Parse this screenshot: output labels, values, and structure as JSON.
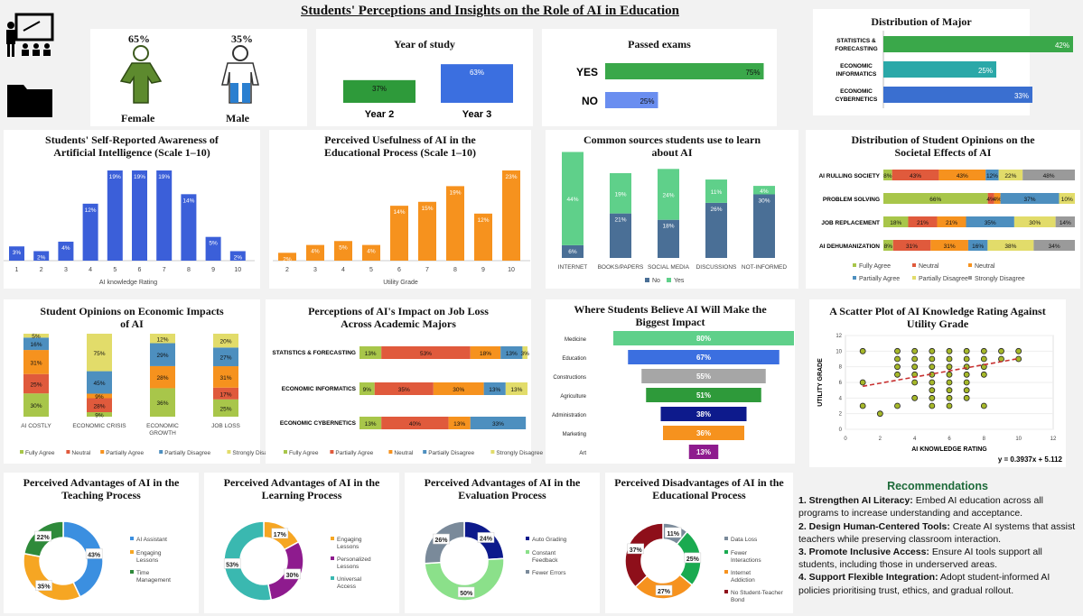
{
  "title": "Students' Perceptions and Insights on the Role of AI in Education",
  "colors": {
    "blue": "#3b5fd9",
    "orange": "#f6921e",
    "green": "#2e9a3a",
    "lightgreen": "#a8c64a",
    "red": "#e05a3c",
    "slate": "#4a6f96",
    "mint": "#5fd08a",
    "yellow": "#e2dc6a",
    "gray": "#9a9a9a",
    "steel": "#4d8fbf"
  },
  "gender": {
    "female_label": "Female",
    "female_pct": "65%",
    "male_label": "Male",
    "male_pct": "35%"
  },
  "year": {
    "title": "Year of study",
    "categories": [
      "Year 2",
      "Year 3"
    ],
    "values": [
      37,
      63
    ],
    "labels": [
      "37%",
      "63%"
    ]
  },
  "exams": {
    "title": "Passed exams",
    "categories": [
      "YES",
      "NO"
    ],
    "values": [
      75,
      25
    ],
    "labels": [
      "75%",
      "25%"
    ]
  },
  "major": {
    "title": "Distribution of Major",
    "categories": [
      "STATISTICS &\nFORECASTING",
      "ECONOMIC\nINFORMATICS",
      "ECONOMIC\nCYBERNETICS"
    ],
    "values": [
      42,
      25,
      33
    ],
    "labels": [
      "42%",
      "25%",
      "33%"
    ]
  },
  "awareness": {
    "title": "Students' Self-Reported Awareness of Artificial Intelligence (Scale 1–10)",
    "x": [
      "1",
      "2",
      "3",
      "4",
      "5",
      "6",
      "7",
      "8",
      "9",
      "10"
    ],
    "values": [
      3,
      2,
      4,
      12,
      19,
      19,
      19,
      14,
      5,
      2
    ],
    "xlabel": "AI knowledge Rating"
  },
  "usefulness": {
    "title": "Perceived Usefulness of AI in the Educational Process (Scale 1–10)",
    "x": [
      "2",
      "3",
      "4",
      "5",
      "6",
      "7",
      "8",
      "9",
      "10"
    ],
    "values": [
      2,
      4,
      5,
      4,
      14,
      15,
      19,
      12,
      23
    ],
    "xlabel": "Utility Grade"
  },
  "sources": {
    "title": "Common sources students use to learn about AI",
    "categories": [
      "INTERNET",
      "BOOKS/PAPERS",
      "SOCIAL MEDIA",
      "DISCUSSIONS",
      "NOT-INFORMED"
    ],
    "no": [
      6,
      21,
      18,
      26,
      30
    ],
    "yes": [
      44,
      19,
      24,
      11,
      4
    ],
    "legend": [
      "No",
      "Yes"
    ]
  },
  "societal": {
    "title": "Distribution of Student Opinions on the Societal Effects of AI",
    "categories": [
      "AI RULLING SOCIETY",
      "PROBLEM SOLVING",
      "JOB REPLACEMENT",
      "AI DEHUMANIZATION"
    ],
    "series": [
      {
        "name": "Fully Agree",
        "values": [
          8,
          66,
          18,
          8
        ],
        "labels": [
          "8%",
          "66%",
          "18%",
          "8%"
        ]
      },
      {
        "name": "Neutral",
        "values": [
          43,
          4,
          21,
          31
        ],
        "labels": [
          "43%",
          "4%",
          "21%",
          "31%"
        ]
      },
      {
        "name": "Neutral",
        "values": [
          43,
          4,
          21,
          31
        ],
        "labels": [
          "43%",
          "4%",
          "21%",
          "31%"
        ]
      },
      {
        "name": "Partially Agree",
        "values": [
          12,
          37,
          35,
          16
        ],
        "labels": [
          "12%",
          "37%",
          "35%",
          "16%"
        ]
      },
      {
        "name": "Partially Disagree",
        "values": [
          22,
          10,
          30,
          38
        ],
        "labels": [
          "22%",
          "10%",
          "30%",
          "38%"
        ]
      },
      {
        "name": "Strongly Disagree",
        "values": [
          48,
          0,
          14,
          34
        ],
        "labels": [
          "48%",
          "",
          "14%",
          "34%"
        ]
      }
    ]
  },
  "economic": {
    "title": "Student Opinions on Economic Impacts of AI",
    "categories": [
      "AI COSTLY",
      "ECONOMIC CRISIS",
      "ECONOMIC\nGROWTH",
      "JOB LOSS"
    ],
    "series": [
      {
        "name": "Fully Agree",
        "values": [
          30,
          9,
          36,
          25
        ],
        "labels": [
          "30%",
          "9%",
          "36%",
          "25%"
        ]
      },
      {
        "name": "Neutral",
        "values": [
          25,
          28,
          0,
          17
        ],
        "labels": [
          "25%",
          "28%",
          "",
          "17%"
        ]
      },
      {
        "name": "Partially Agree",
        "values": [
          31,
          9,
          28,
          31
        ],
        "labels": [
          "31%",
          "9%",
          "28%",
          "31%"
        ]
      },
      {
        "name": "Partially Disagree",
        "values": [
          16,
          45,
          29,
          27
        ],
        "labels": [
          "16%",
          "45%",
          "29%",
          "27%"
        ]
      },
      {
        "name": "Strongly Disagree",
        "values": [
          5,
          75,
          12,
          20
        ],
        "labels": [
          "5%",
          "75%",
          "12%",
          "20%"
        ]
      }
    ]
  },
  "jobloss": {
    "title": "Perceptions of AI's Impact on Job Loss Across Academic Majors",
    "categories": [
      "STATISTICS & FORECASTING",
      "ECONOMIC INFORMATICS",
      "ECONOMIC CYBERNETICS"
    ],
    "series": [
      {
        "name": "Fully Agree",
        "values": [
          13,
          9,
          13
        ],
        "labels": [
          "13%",
          "9%",
          "13%"
        ]
      },
      {
        "name": "Partially Agree",
        "values": [
          53,
          35,
          40
        ],
        "labels": [
          "53%",
          "35%",
          "40%"
        ]
      },
      {
        "name": "Neutral",
        "values": [
          18,
          30,
          13
        ],
        "labels": [
          "18%",
          "30%",
          "13%"
        ]
      },
      {
        "name": "Partially Disagree",
        "values": [
          13,
          13,
          33
        ],
        "labels": [
          "13%",
          "13%",
          "33%"
        ]
      },
      {
        "name": "Strongly Disagree",
        "values": [
          3,
          13,
          0
        ],
        "labels": [
          "3%",
          "13%",
          ""
        ]
      }
    ]
  },
  "impact": {
    "title": "Where Students Believe AI Will Make the Biggest Impact",
    "categories": [
      "Medicine",
      "Education",
      "Constructions",
      "Agriculture",
      "Administration",
      "Marketing",
      "Art"
    ],
    "values": [
      80,
      67,
      55,
      51,
      38,
      36,
      13
    ],
    "labels": [
      "80%",
      "67%",
      "55%",
      "51%",
      "38%",
      "36%",
      "13%"
    ],
    "colors": [
      "#5fd08a",
      "#3b6fe0",
      "#a6a6a6",
      "#2e9a3a",
      "#0d1a8c",
      "#f6921e",
      "#8e1b8e"
    ]
  },
  "scatter": {
    "title": "A Scatter Plot of AI Knowledge Rating Against Utility Grade",
    "xlabel": "AI KNOWLEDGE RATING",
    "ylabel": "UTILITY GRADE",
    "xticks": [
      "0",
      "2",
      "4",
      "6",
      "8",
      "10",
      "12"
    ],
    "yticks": [
      "0",
      "2",
      "4",
      "6",
      "8",
      "10",
      "12"
    ],
    "equation": "y = 0.3937x + 5.112",
    "points": [
      [
        1,
        10
      ],
      [
        1,
        6
      ],
      [
        1,
        3
      ],
      [
        2,
        2
      ],
      [
        3,
        10
      ],
      [
        3,
        9
      ],
      [
        3,
        8
      ],
      [
        3,
        7
      ],
      [
        3,
        3
      ],
      [
        4,
        10
      ],
      [
        4,
        9
      ],
      [
        4,
        8
      ],
      [
        4,
        7
      ],
      [
        4,
        6
      ],
      [
        4,
        4
      ],
      [
        5,
        10
      ],
      [
        5,
        9
      ],
      [
        5,
        8
      ],
      [
        5,
        7
      ],
      [
        5,
        6
      ],
      [
        5,
        5
      ],
      [
        5,
        4
      ],
      [
        5,
        3
      ],
      [
        6,
        10
      ],
      [
        6,
        9
      ],
      [
        6,
        8
      ],
      [
        6,
        7
      ],
      [
        6,
        6
      ],
      [
        6,
        5
      ],
      [
        6,
        4
      ],
      [
        6,
        3
      ],
      [
        7,
        10
      ],
      [
        7,
        9
      ],
      [
        7,
        8
      ],
      [
        7,
        7
      ],
      [
        7,
        6
      ],
      [
        7,
        5
      ],
      [
        7,
        4
      ],
      [
        8,
        10
      ],
      [
        8,
        9
      ],
      [
        8,
        8
      ],
      [
        8,
        7
      ],
      [
        8,
        3
      ],
      [
        9,
        10
      ],
      [
        9,
        9
      ],
      [
        10,
        10
      ],
      [
        10,
        9
      ]
    ]
  },
  "teaching": {
    "title": "Perceived Advantages of AI in the Teaching Process",
    "values": [
      43,
      35,
      22
    ],
    "labels": [
      "43%",
      "35%",
      "22%"
    ],
    "legend": [
      "AI Assistant",
      "Engaging Lessons",
      "Time Management"
    ],
    "colors": [
      "#3b8fe0",
      "#f6a623",
      "#2e8a3a"
    ]
  },
  "learning": {
    "title": "Perceived Advantages of AI in the Learning Process",
    "values": [
      17,
      30,
      53
    ],
    "labels": [
      "17%",
      "30%",
      "53%"
    ],
    "legend": [
      "Engaging Lessons",
      "Personalized Lessons",
      "Universal Access"
    ],
    "colors": [
      "#f6a623",
      "#8e1b8e",
      "#3ab8b0"
    ]
  },
  "evaluation": {
    "title": "Perceived Advantages of AI in the Evaluation Process",
    "values": [
      24,
      50,
      26
    ],
    "labels": [
      "24%",
      "50%",
      "26%"
    ],
    "legend": [
      "Auto Grading",
      "Constant Feedback",
      "Fewer Errors"
    ],
    "colors": [
      "#0d1a8c",
      "#8be08a",
      "#7a8a9a"
    ]
  },
  "disadv": {
    "title": "Perceived Disadvantages of AI in the Educational Process",
    "values": [
      11,
      25,
      27,
      37
    ],
    "labels": [
      "11%",
      "25%",
      "27%",
      "37%"
    ],
    "legend": [
      "Data Loss",
      "Fewer Interactions",
      "Internet Addiction",
      "No Student-Teacher Bond"
    ],
    "colors": [
      "#7a8a9a",
      "#1aaa50",
      "#f6921e",
      "#8e0f1a"
    ]
  },
  "recommendations": {
    "title": "Recommendations",
    "items": [
      {
        "head": "1. Strengthen AI Literacy:",
        "text": " Embed AI education across all programs to increase understanding and acceptance."
      },
      {
        "head": "2. Design Human-Centered Tools:",
        "text": " Create AI systems that assist teachers while preserving classroom interaction."
      },
      {
        "head": "3. Promote Inclusive Access:",
        "text": " Ensure AI tools support all students, including those in underserved areas."
      },
      {
        "head": "4. Support Flexible Integration:",
        "text": " Adopt student-informed AI policies prioritising trust, ethics, and gradual rollout."
      }
    ]
  }
}
